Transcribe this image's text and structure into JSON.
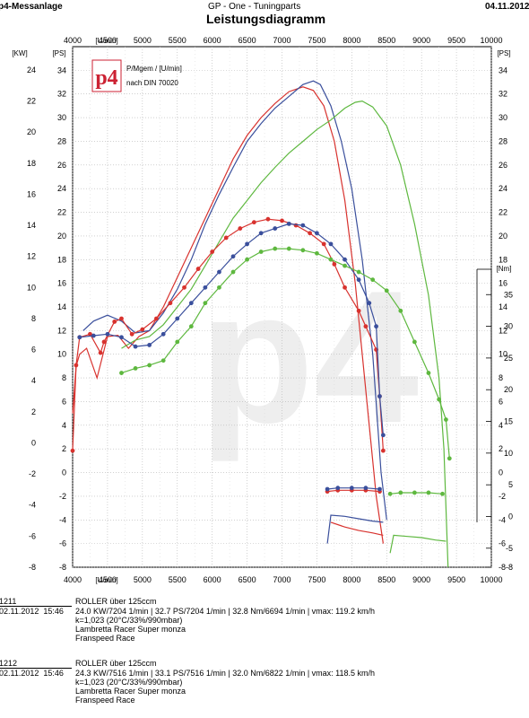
{
  "header": {
    "left": "p4-Messanlage",
    "center": "GP - One - Tuningparts",
    "right": "04.11.2012",
    "title": "Leistungsdiagramm"
  },
  "chart_data": {
    "type": "line",
    "x_unit_label": "[U/min]",
    "x_ticks": [
      4000,
      4500,
      5000,
      5500,
      6000,
      6500,
      7000,
      7500,
      8000,
      8500,
      9000,
      9500,
      10000
    ],
    "kw_unit_label": "[KW]",
    "kw_ticks": [
      -8,
      -6,
      -4,
      -2,
      0,
      2,
      4,
      6,
      8,
      10,
      12,
      14,
      16,
      18,
      20,
      22,
      24
    ],
    "ps_unit_label": "[PS]",
    "ps_ticks": [
      -8,
      -6,
      -4,
      -2,
      0,
      2,
      4,
      6,
      8,
      10,
      12,
      14,
      16,
      18,
      20,
      22,
      24,
      26,
      28,
      30,
      32,
      34
    ],
    "nm_unit_label": "[Nm]",
    "nm_ticks": [
      -8,
      -5,
      0,
      5,
      10,
      15,
      20,
      25,
      30,
      35
    ],
    "legend": {
      "badge": "p4",
      "line1": "P/Mgem / [U/min]",
      "line2": "nach DIN 70020"
    },
    "watermark": "p4",
    "series": [
      {
        "color": "#d8322e",
        "kind": "power_ps",
        "points": [
          [
            4000,
            5
          ],
          [
            4050,
            9
          ],
          [
            4100,
            10
          ],
          [
            4200,
            10.5
          ],
          [
            4350,
            8
          ],
          [
            4500,
            11.5
          ],
          [
            4650,
            11.6
          ],
          [
            4800,
            10.5
          ],
          [
            4950,
            11.5
          ],
          [
            5100,
            12
          ],
          [
            5300,
            14
          ],
          [
            5500,
            16.5
          ],
          [
            5700,
            19
          ],
          [
            5900,
            21.5
          ],
          [
            6100,
            24
          ],
          [
            6300,
            26.5
          ],
          [
            6500,
            28.5
          ],
          [
            6700,
            30
          ],
          [
            6900,
            31.2
          ],
          [
            7100,
            32.2
          ],
          [
            7300,
            32.6
          ],
          [
            7450,
            32.3
          ],
          [
            7600,
            31
          ],
          [
            7750,
            28
          ],
          [
            7900,
            23
          ],
          [
            8050,
            16
          ],
          [
            8150,
            10
          ],
          [
            8250,
            4
          ],
          [
            8350,
            -2
          ],
          [
            8450,
            -6
          ]
        ]
      },
      {
        "color": "#3a4f9c",
        "kind": "power_ps",
        "points": [
          [
            4150,
            12
          ],
          [
            4300,
            12.8
          ],
          [
            4500,
            13.3
          ],
          [
            4700,
            12.8
          ],
          [
            4900,
            11.8
          ],
          [
            5100,
            12
          ],
          [
            5300,
            13.5
          ],
          [
            5500,
            15.5
          ],
          [
            5700,
            18
          ],
          [
            5900,
            21
          ],
          [
            6100,
            23.5
          ],
          [
            6300,
            25.8
          ],
          [
            6500,
            28
          ],
          [
            6700,
            29.5
          ],
          [
            6900,
            30.8
          ],
          [
            7100,
            31.8
          ],
          [
            7300,
            32.8
          ],
          [
            7450,
            33.1
          ],
          [
            7550,
            32.8
          ],
          [
            7700,
            31
          ],
          [
            7850,
            28
          ],
          [
            8000,
            24
          ],
          [
            8150,
            18
          ],
          [
            8300,
            10
          ],
          [
            8420,
            0
          ],
          [
            8500,
            -4
          ]
        ]
      },
      {
        "color": "#5eb83f",
        "kind": "power_ps",
        "points": [
          [
            4700,
            10.5
          ],
          [
            4900,
            11.2
          ],
          [
            5100,
            11.5
          ],
          [
            5300,
            12.5
          ],
          [
            5500,
            14
          ],
          [
            5700,
            15.5
          ],
          [
            5900,
            17.5
          ],
          [
            6100,
            19.5
          ],
          [
            6300,
            21.5
          ],
          [
            6500,
            23
          ],
          [
            6700,
            24.5
          ],
          [
            6900,
            25.8
          ],
          [
            7100,
            27
          ],
          [
            7300,
            28
          ],
          [
            7500,
            29
          ],
          [
            7700,
            29.8
          ],
          [
            7900,
            30.8
          ],
          [
            8050,
            31.3
          ],
          [
            8150,
            31.4
          ],
          [
            8300,
            30.9
          ],
          [
            8500,
            29.3
          ],
          [
            8700,
            26
          ],
          [
            8900,
            21
          ],
          [
            9100,
            15
          ],
          [
            9250,
            8
          ],
          [
            9320,
            2
          ],
          [
            9380,
            -8
          ]
        ]
      },
      {
        "color": "#d8322e",
        "kind": "power_kw",
        "points": [
          [
            4000,
            -0.5
          ],
          [
            4050,
            5
          ],
          [
            4100,
            6.8
          ],
          [
            4250,
            7
          ],
          [
            4400,
            5.8
          ],
          [
            4450,
            6.5
          ],
          [
            4600,
            7.8
          ],
          [
            4700,
            8
          ],
          [
            4850,
            7
          ],
          [
            5000,
            7.3
          ],
          [
            5200,
            8
          ],
          [
            5400,
            9
          ],
          [
            5600,
            10
          ],
          [
            5800,
            11.2
          ],
          [
            6000,
            12.3
          ],
          [
            6200,
            13.2
          ],
          [
            6400,
            13.8
          ],
          [
            6600,
            14.2
          ],
          [
            6800,
            14.4
          ],
          [
            7000,
            14.3
          ],
          [
            7200,
            14
          ],
          [
            7400,
            13.5
          ],
          [
            7600,
            12.8
          ],
          [
            7750,
            11.5
          ],
          [
            7900,
            10
          ],
          [
            8100,
            8.5
          ],
          [
            8200,
            7.5
          ],
          [
            8350,
            6
          ],
          [
            8400,
            3
          ],
          [
            8450,
            -0.5
          ]
        ]
      },
      {
        "color": "#3a4f9c",
        "kind": "power_kw",
        "points": [
          [
            4100,
            6.8
          ],
          [
            4300,
            6.9
          ],
          [
            4500,
            7
          ],
          [
            4700,
            6.8
          ],
          [
            4900,
            6.2
          ],
          [
            5100,
            6.3
          ],
          [
            5300,
            7
          ],
          [
            5500,
            8
          ],
          [
            5700,
            9
          ],
          [
            5900,
            10
          ],
          [
            6100,
            11
          ],
          [
            6300,
            12
          ],
          [
            6500,
            12.8
          ],
          [
            6700,
            13.5
          ],
          [
            6900,
            13.8
          ],
          [
            7100,
            14.1
          ],
          [
            7300,
            14
          ],
          [
            7500,
            13.5
          ],
          [
            7700,
            12.8
          ],
          [
            7900,
            11.8
          ],
          [
            8100,
            10.5
          ],
          [
            8250,
            9
          ],
          [
            8350,
            7.5
          ],
          [
            8400,
            3
          ],
          [
            8450,
            0.5
          ]
        ]
      },
      {
        "color": "#5eb83f",
        "kind": "power_kw",
        "points": [
          [
            4700,
            4.5
          ],
          [
            4900,
            4.8
          ],
          [
            5100,
            5
          ],
          [
            5300,
            5.3
          ],
          [
            5500,
            6.5
          ],
          [
            5700,
            7.5
          ],
          [
            5900,
            9
          ],
          [
            6100,
            10
          ],
          [
            6300,
            11
          ],
          [
            6500,
            11.8
          ],
          [
            6700,
            12.3
          ],
          [
            6900,
            12.5
          ],
          [
            7100,
            12.5
          ],
          [
            7300,
            12.4
          ],
          [
            7500,
            12.2
          ],
          [
            7700,
            11.8
          ],
          [
            7900,
            11.4
          ],
          [
            8100,
            11
          ],
          [
            8300,
            10.5
          ],
          [
            8500,
            9.8
          ],
          [
            8700,
            8.5
          ],
          [
            8900,
            6.5
          ],
          [
            9100,
            4.5
          ],
          [
            9250,
            2.8
          ],
          [
            9350,
            1.5
          ],
          [
            9400,
            -1
          ]
        ]
      },
      {
        "color": "#d8322e",
        "kind": "neg_branch",
        "points": [
          [
            7650,
            -1.6
          ],
          [
            7800,
            -1.5
          ],
          [
            8000,
            -1.5
          ],
          [
            8200,
            -1.5
          ],
          [
            8400,
            -1.6
          ]
        ]
      },
      {
        "color": "#3a4f9c",
        "kind": "neg_branch",
        "points": [
          [
            7650,
            -1.4
          ],
          [
            7800,
            -1.3
          ],
          [
            8000,
            -1.3
          ],
          [
            8200,
            -1.3
          ],
          [
            8400,
            -1.4
          ]
        ]
      },
      {
        "color": "#5eb83f",
        "kind": "neg_branch",
        "points": [
          [
            8550,
            -1.8
          ],
          [
            8700,
            -1.7
          ],
          [
            8900,
            -1.7
          ],
          [
            9100,
            -1.7
          ],
          [
            9300,
            -1.8
          ]
        ]
      },
      {
        "color": "#d8322e",
        "kind": "neg_branch",
        "points": [
          [
            7700,
            -4.2
          ],
          [
            7900,
            -4.6
          ],
          [
            8100,
            -4.9
          ],
          [
            8300,
            -5.1
          ],
          [
            8450,
            -5.3
          ]
        ]
      },
      {
        "color": "#3a4f9c",
        "kind": "neg_branch",
        "points": [
          [
            7650,
            -6
          ],
          [
            7700,
            -3.6
          ],
          [
            7900,
            -3.7
          ],
          [
            8100,
            -3.9
          ],
          [
            8300,
            -4.1
          ],
          [
            8450,
            -4.2
          ]
        ]
      },
      {
        "color": "#5eb83f",
        "kind": "neg_branch",
        "points": [
          [
            8550,
            -6.8
          ],
          [
            8600,
            -5.3
          ],
          [
            8800,
            -5.4
          ],
          [
            9000,
            -5.5
          ],
          [
            9200,
            -5.7
          ],
          [
            9350,
            -5.8
          ]
        ]
      }
    ]
  },
  "runs": [
    {
      "id": "1211",
      "date": "02.11.2012",
      "time": "15:46",
      "name": "ROLLER über 125ccm",
      "stats": "24.0 KW/7204 1/min  |  32.7 PS/7204 1/min  |  32.8 Nm/6694 1/min  |  vmax: 119.2 km/h",
      "k": "k=1,023 (20°C/33%/990mbar)",
      "vehicle": "Lambretta Racer Super monza",
      "variant": "Franspeed Race"
    },
    {
      "id": "1212",
      "date": "02.11.2012",
      "time": "15:46",
      "name": "ROLLER über 125ccm",
      "stats": "24.3 KW/7516 1/min  |  33.1 PS/7516 1/min  |  32.0 Nm/6822 1/min  |  vmax: 118.5 km/h",
      "k": "k=1,023 (20°C/33%/990mbar)",
      "vehicle": "Lambretta Racer Super monza",
      "variant": "Franspeed Race"
    }
  ]
}
